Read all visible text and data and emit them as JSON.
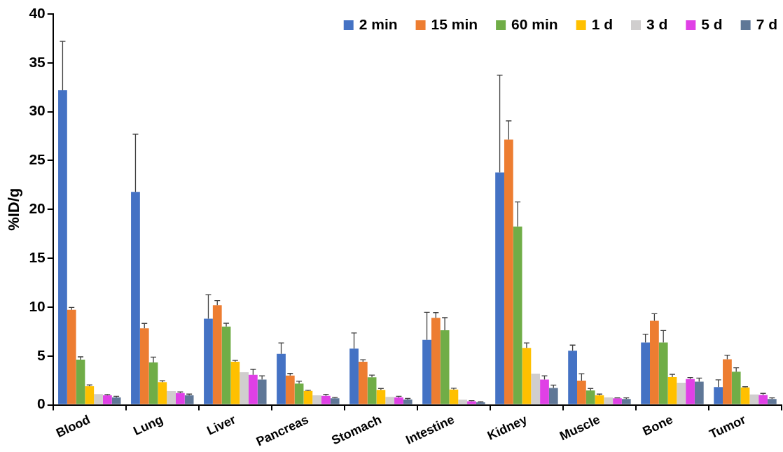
{
  "chart_data": {
    "type": "bar",
    "ylabel": "%ID/g",
    "categories": [
      "Blood",
      "Lung",
      "Liver",
      "Pancreas",
      "Stomach",
      "Intestine",
      "Kidney",
      "Muscle",
      "Bone",
      "Tumor"
    ],
    "series": [
      {
        "name": "2 min",
        "color": "#4472c4",
        "values": [
          32.2,
          21.8,
          8.82,
          5.21,
          5.76,
          6.65,
          23.78,
          5.53,
          6.38,
          1.82
        ],
        "errors": [
          [
            32.2,
            37.2
          ],
          [
            21.8,
            27.7
          ],
          [
            8.82,
            11.27
          ],
          [
            5.21,
            6.33
          ],
          [
            5.76,
            7.35
          ],
          [
            6.65,
            9.47
          ],
          [
            23.78,
            33.74
          ],
          [
            5.53,
            6.11
          ],
          [
            6.38,
            7.23
          ],
          [
            1.82,
            2.56
          ]
        ]
      },
      {
        "name": "15 min",
        "color": "#ed7d31",
        "values": [
          9.72,
          7.83,
          10.2,
          2.99,
          4.41,
          8.9,
          27.14,
          2.47,
          8.6,
          4.66
        ],
        "errors": [
          [
            9.72,
            9.97
          ],
          [
            7.83,
            8.33
          ],
          [
            10.2,
            10.67
          ],
          [
            2.99,
            3.21
          ],
          [
            4.41,
            4.61
          ],
          [
            8.9,
            9.44
          ],
          [
            27.14,
            29.06
          ],
          [
            2.47,
            3.19
          ],
          [
            8.6,
            9.32
          ],
          [
            4.66,
            5.08
          ]
        ]
      },
      {
        "name": "60 min",
        "color": "#70ad47",
        "values": [
          4.63,
          4.34,
          8.0,
          2.17,
          2.82,
          7.63,
          18.24,
          1.47,
          6.38,
          3.39
        ],
        "errors": [
          [
            4.63,
            4.91
          ],
          [
            4.34,
            4.88
          ],
          [
            8.0,
            8.35
          ],
          [
            2.17,
            2.42
          ],
          [
            2.82,
            3.04
          ],
          [
            7.63,
            8.92
          ],
          [
            18.24,
            20.76
          ],
          [
            1.47,
            1.67
          ],
          [
            6.38,
            7.6
          ],
          [
            3.39,
            3.79
          ]
        ]
      },
      {
        "name": "1 d",
        "color": "#ffc000",
        "values": [
          1.9,
          2.32,
          4.41,
          1.42,
          1.52,
          1.57,
          5.83,
          0.97,
          2.84,
          1.77
        ],
        "errors": [
          [
            1.9,
            2.04
          ],
          [
            2.32,
            2.47
          ],
          [
            4.41,
            4.54
          ],
          [
            1.42,
            1.5
          ],
          [
            1.52,
            1.67
          ],
          [
            1.57,
            1.7
          ],
          [
            5.83,
            6.33
          ],
          [
            0.97,
            1.1
          ],
          [
            2.84,
            3.12
          ],
          [
            1.77,
            1.85
          ]
        ]
      },
      {
        "name": "3 d",
        "color": "#d0cece",
        "values": [
          1.1,
          1.4,
          3.34,
          0.97,
          0.82,
          0.52,
          3.19,
          0.75,
          2.27,
          1.07
        ]
      },
      {
        "name": "5 d",
        "color": "#e040e6",
        "values": [
          0.97,
          1.2,
          3.07,
          0.92,
          0.75,
          0.37,
          2.59,
          0.67,
          2.64,
          1.0
        ],
        "errors": [
          [
            0.97,
            1.05
          ],
          [
            1.2,
            1.32
          ],
          [
            3.07,
            3.64
          ],
          [
            0.92,
            1.07
          ],
          [
            0.75,
            0.87
          ],
          [
            0.37,
            0.42
          ],
          [
            2.59,
            2.97
          ],
          [
            0.67,
            0.72
          ],
          [
            2.64,
            2.79
          ],
          [
            1.0,
            1.17
          ]
        ]
      },
      {
        "name": "7 d",
        "color": "#5f7797",
        "values": [
          0.75,
          0.97,
          2.59,
          0.67,
          0.55,
          0.25,
          1.72,
          0.6,
          2.37,
          0.6
        ],
        "errors": [
          [
            0.75,
            0.87
          ],
          [
            0.97,
            1.1
          ],
          [
            2.59,
            2.97
          ],
          [
            0.67,
            0.75
          ],
          [
            0.55,
            0.65
          ],
          [
            0.25,
            0.32
          ],
          [
            1.72,
            2.02
          ],
          [
            0.6,
            0.72
          ],
          [
            2.37,
            2.74
          ],
          [
            0.6,
            0.72
          ]
        ]
      }
    ],
    "ylim": [
      0,
      40
    ],
    "yticks": [
      0,
      5,
      10,
      15,
      20,
      25,
      30,
      35,
      40
    ],
    "grid": false,
    "legend": "top right"
  }
}
